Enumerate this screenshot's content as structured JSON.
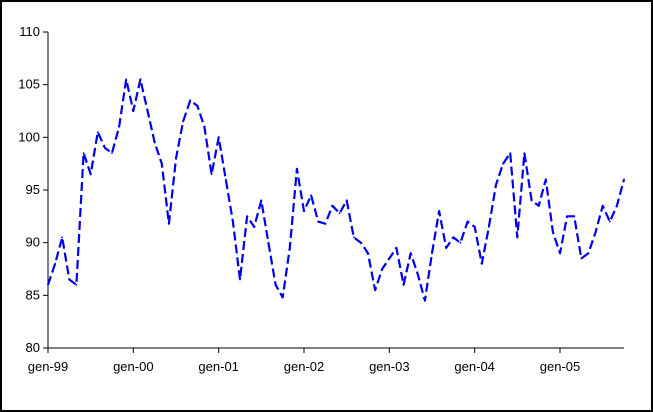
{
  "chart_data": {
    "type": "line",
    "title": "",
    "xlabel": "",
    "ylabel": "",
    "ylim": [
      80,
      110
    ],
    "yticks": [
      80,
      85,
      90,
      95,
      100,
      105,
      110
    ],
    "xlim": [
      "1999-01",
      "2005-10"
    ],
    "xticks": [
      "gen-99",
      "gen-00",
      "gen-01",
      "gen-02",
      "gen-03",
      "gen-04",
      "gen-05"
    ],
    "grid": false,
    "legend": "none",
    "line_style": "dashed",
    "colors": {
      "series": "#0000ee",
      "axis": "#000000"
    },
    "series": [
      {
        "x": [
          "1999-01",
          "1999-02",
          "1999-03",
          "1999-04",
          "1999-05",
          "1999-06",
          "1999-07",
          "1999-08",
          "1999-09",
          "1999-10",
          "1999-11",
          "1999-12",
          "2000-01",
          "2000-02",
          "2000-03",
          "2000-04",
          "2000-05",
          "2000-06",
          "2000-07",
          "2000-08",
          "2000-09",
          "2000-10",
          "2000-11",
          "2000-12",
          "2001-01",
          "2001-02",
          "2001-03",
          "2001-04",
          "2001-05",
          "2001-06",
          "2001-07",
          "2001-08",
          "2001-09",
          "2001-10",
          "2001-11",
          "2001-12",
          "2002-01",
          "2002-02",
          "2002-03",
          "2002-04",
          "2002-05",
          "2002-06",
          "2002-07",
          "2002-08",
          "2002-09",
          "2002-10",
          "2002-11",
          "2002-12",
          "2003-01",
          "2003-02",
          "2003-03",
          "2003-04",
          "2003-05",
          "2003-06",
          "2003-07",
          "2003-08",
          "2003-09",
          "2003-10",
          "2003-11",
          "2003-12",
          "2004-01",
          "2004-02",
          "2004-03",
          "2004-04",
          "2004-05",
          "2004-06",
          "2004-07",
          "2004-08",
          "2004-09",
          "2004-10",
          "2004-11",
          "2004-12",
          "2005-01",
          "2005-02",
          "2005-03",
          "2005-04",
          "2005-05",
          "2005-06",
          "2005-07",
          "2005-08",
          "2005-09",
          "2005-10"
        ],
        "values": [
          86.0,
          88.0,
          90.5,
          86.5,
          86.0,
          98.5,
          96.5,
          100.5,
          99.0,
          98.5,
          101.0,
          105.5,
          102.5,
          105.5,
          102.5,
          99.5,
          97.5,
          91.8,
          98.0,
          101.5,
          103.5,
          103.0,
          101.0,
          96.5,
          100.0,
          96.0,
          92.0,
          86.5,
          92.5,
          91.5,
          94.0,
          90.0,
          86.0,
          84.8,
          89.5,
          97.0,
          93.0,
          94.5,
          92.0,
          91.8,
          93.5,
          92.8,
          94.0,
          90.5,
          90.0,
          89.0,
          85.5,
          87.5,
          88.5,
          89.5,
          86.0,
          89.0,
          87.0,
          84.5,
          89.0,
          93.0,
          89.5,
          90.5,
          90.0,
          92.0,
          91.5,
          88.0,
          91.5,
          95.5,
          97.5,
          98.5,
          90.5,
          98.5,
          94.0,
          93.5,
          96.0,
          91.0,
          89.0,
          92.5,
          92.5,
          88.5,
          89.0,
          91.0,
          93.5,
          92.0,
          93.5,
          96.0
        ]
      }
    ]
  }
}
